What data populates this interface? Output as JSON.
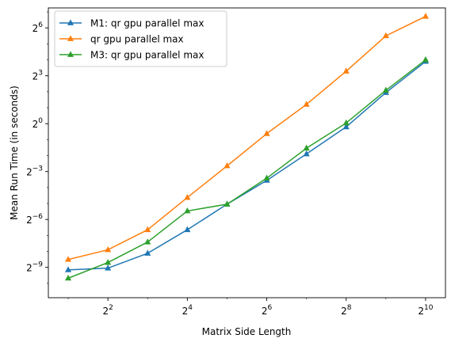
{
  "chart_data": {
    "type": "line",
    "title": "",
    "xlabel": "Matrix Side Length",
    "ylabel": "Mean Run Time (in seconds)",
    "x_scale": "log2",
    "y_scale": "log2",
    "xlim_exp": [
      0.5,
      10.5
    ],
    "ylim_exp": [
      -10.9,
      7.25
    ],
    "grid": false,
    "legend_position": "top-left",
    "x_ticks": [
      {
        "exp": 2,
        "base": "2",
        "sup": "2"
      },
      {
        "exp": 4,
        "base": "2",
        "sup": "4"
      },
      {
        "exp": 6,
        "base": "2",
        "sup": "6"
      },
      {
        "exp": 8,
        "base": "2",
        "sup": "8"
      },
      {
        "exp": 10,
        "base": "2",
        "sup": "10"
      }
    ],
    "y_ticks": [
      {
        "exp": -9,
        "base": "2",
        "sup": "−9"
      },
      {
        "exp": -6,
        "base": "2",
        "sup": "−6"
      },
      {
        "exp": -3,
        "base": "2",
        "sup": "−3"
      },
      {
        "exp": 0,
        "base": "2",
        "sup": "0"
      },
      {
        "exp": 3,
        "base": "2",
        "sup": "3"
      },
      {
        "exp": 6,
        "base": "2",
        "sup": "6"
      }
    ],
    "x": [
      2,
      4,
      8,
      16,
      32,
      64,
      128,
      256,
      512,
      1024
    ],
    "series": [
      {
        "name": "M1: qr gpu parallel max",
        "color": "#1f77b4",
        "marker": "triangle-up",
        "values": [
          0.00175,
          0.00189,
          0.0036,
          0.01,
          0.0303,
          0.0852,
          0.269,
          0.869,
          3.86,
          14.9
        ]
      },
      {
        "name": "qr gpu parallel max",
        "color": "#ff7f0e",
        "marker": "triangle-up",
        "values": [
          0.00275,
          0.00419,
          0.01,
          0.0405,
          0.16,
          0.649,
          2.31,
          9.77,
          45.3,
          105.6
        ]
      },
      {
        "name": "M3: qr gpu parallel max",
        "color": "#2ca02c",
        "marker": "triangle-up",
        "values": [
          0.00122,
          0.00241,
          0.00586,
          0.0226,
          0.0303,
          0.0938,
          0.345,
          1.03,
          4.26,
          16.0
        ]
      }
    ]
  }
}
